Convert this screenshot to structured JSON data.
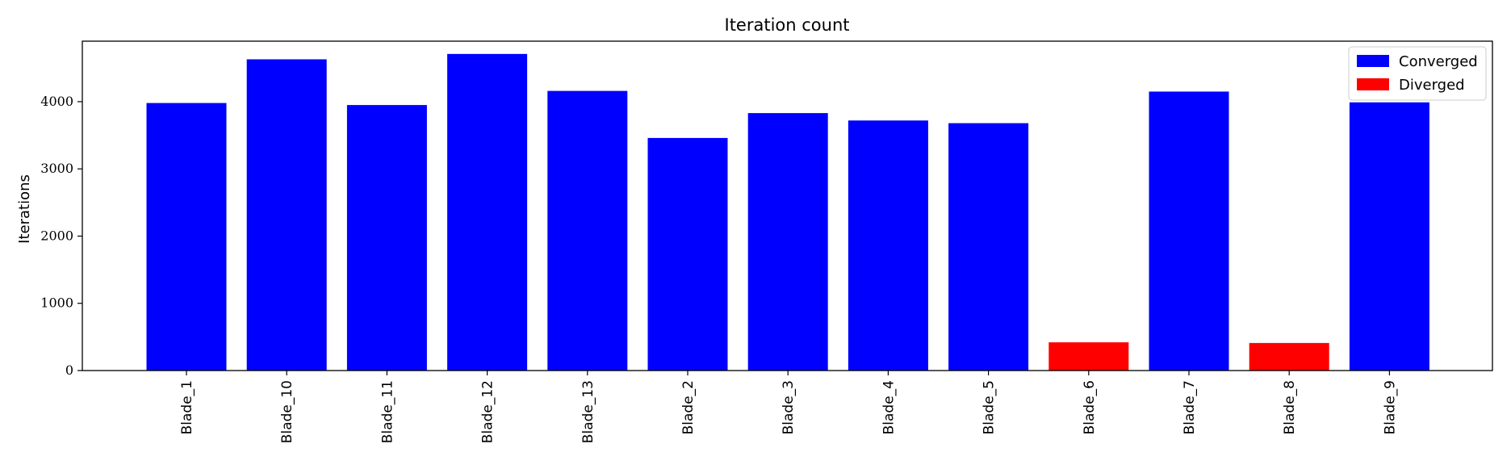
{
  "chart_data": {
    "type": "bar",
    "title": "Iteration count",
    "xlabel": "",
    "ylabel": "Iterations",
    "ylim": [
      0,
      4900
    ],
    "yticks": [
      0,
      1000,
      2000,
      3000,
      4000
    ],
    "grid": false,
    "legend_position": "top-right",
    "colors": {
      "Converged": "#0000ff",
      "Diverged": "#ff0000"
    },
    "legend": [
      "Converged",
      "Diverged"
    ],
    "categories": [
      "Blade_1",
      "Blade_10",
      "Blade_11",
      "Blade_12",
      "Blade_13",
      "Blade_2",
      "Blade_3",
      "Blade_4",
      "Blade_5",
      "Blade_6",
      "Blade_7",
      "Blade_8",
      "Blade_9"
    ],
    "values": [
      3980,
      4630,
      3950,
      4710,
      4160,
      3460,
      3830,
      3720,
      3680,
      420,
      4150,
      410,
      3990
    ],
    "status": [
      "Converged",
      "Converged",
      "Converged",
      "Converged",
      "Converged",
      "Converged",
      "Converged",
      "Converged",
      "Converged",
      "Diverged",
      "Converged",
      "Diverged",
      "Converged"
    ]
  }
}
